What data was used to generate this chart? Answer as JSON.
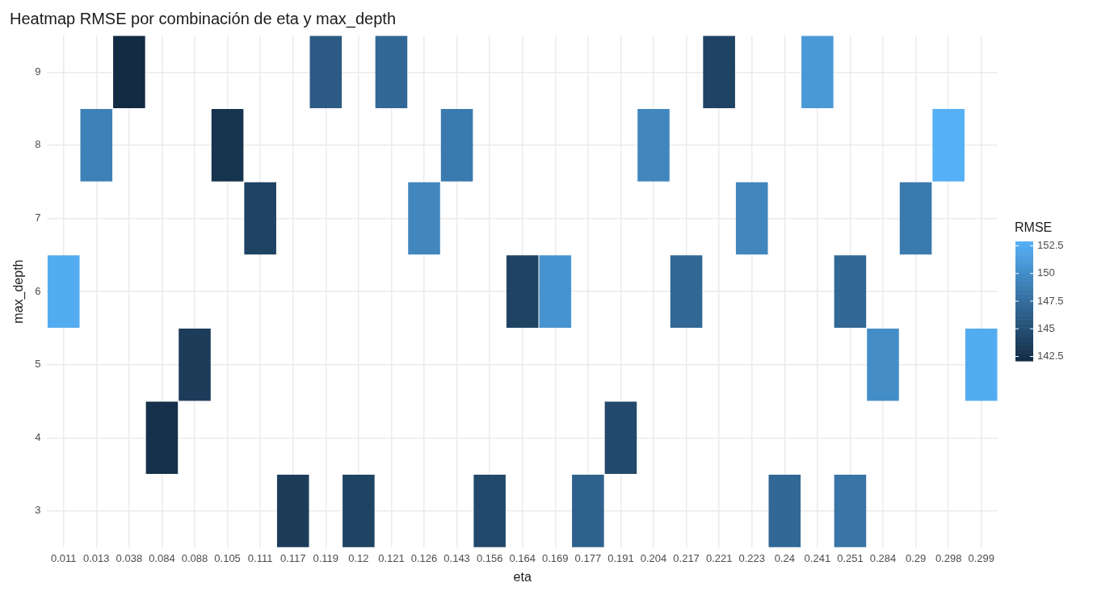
{
  "chart_data": {
    "type": "heatmap",
    "title": "Heatmap RMSE por combinación de eta y max_depth",
    "xlabel": "eta",
    "ylabel": "max_depth",
    "clabel": "RMSE",
    "categories": [
      "0.011",
      "0.013",
      "0.038",
      "0.084",
      "0.088",
      "0.105",
      "0.111",
      "0.117",
      "0.119",
      "0.12",
      "0.121",
      "0.126",
      "0.143",
      "0.156",
      "0.164",
      "0.169",
      "0.177",
      "0.191",
      "0.204",
      "0.217",
      "0.221",
      "0.223",
      "0.24",
      "0.241",
      "0.251",
      "0.284",
      "0.29",
      "0.298",
      "0.299"
    ],
    "y_categories": [
      "9",
      "8",
      "7",
      "6",
      "5",
      "4",
      "3"
    ],
    "cells": [
      [
        null,
        null,
        142.1,
        null,
        null,
        null,
        null,
        null,
        146,
        null,
        147,
        null,
        null,
        null,
        null,
        null,
        null,
        null,
        null,
        null,
        144,
        null,
        null,
        151,
        null,
        null,
        null,
        null,
        null
      ],
      [
        null,
        149,
        null,
        null,
        null,
        142.8,
        null,
        null,
        null,
        null,
        null,
        null,
        148.5,
        null,
        null,
        null,
        null,
        null,
        149.5,
        null,
        null,
        null,
        null,
        null,
        null,
        null,
        null,
        152.8,
        null
      ],
      [
        null,
        null,
        null,
        null,
        null,
        null,
        144,
        null,
        null,
        null,
        null,
        149.5,
        null,
        null,
        null,
        null,
        null,
        null,
        null,
        null,
        null,
        149.5,
        null,
        null,
        null,
        null,
        148.5,
        null,
        null
      ],
      [
        152.5,
        null,
        null,
        null,
        null,
        null,
        null,
        null,
        null,
        null,
        null,
        null,
        null,
        null,
        144,
        150.5,
        null,
        null,
        null,
        147,
        null,
        null,
        null,
        null,
        147,
        null,
        null,
        null,
        null
      ],
      [
        null,
        null,
        null,
        null,
        143.5,
        null,
        null,
        null,
        null,
        null,
        null,
        null,
        null,
        null,
        null,
        null,
        null,
        null,
        null,
        null,
        null,
        null,
        null,
        null,
        null,
        150,
        null,
        null,
        152.5
      ],
      [
        null,
        null,
        null,
        142.5,
        null,
        null,
        null,
        null,
        null,
        null,
        null,
        null,
        null,
        null,
        null,
        null,
        null,
        144.5,
        null,
        null,
        null,
        null,
        null,
        null,
        null,
        null,
        null,
        null,
        null
      ],
      [
        null,
        null,
        null,
        null,
        null,
        null,
        null,
        143.5,
        null,
        144,
        null,
        null,
        null,
        144.5,
        null,
        null,
        146.5,
        null,
        null,
        null,
        null,
        null,
        147,
        null,
        148,
        null,
        null,
        null,
        null
      ]
    ],
    "clim": [
      142.1,
      152.9
    ],
    "cticks": [
      142.5,
      145,
      147.5,
      150,
      152.5
    ],
    "colors": [
      "#132b43",
      "#56b1f7"
    ],
    "grid": true
  }
}
